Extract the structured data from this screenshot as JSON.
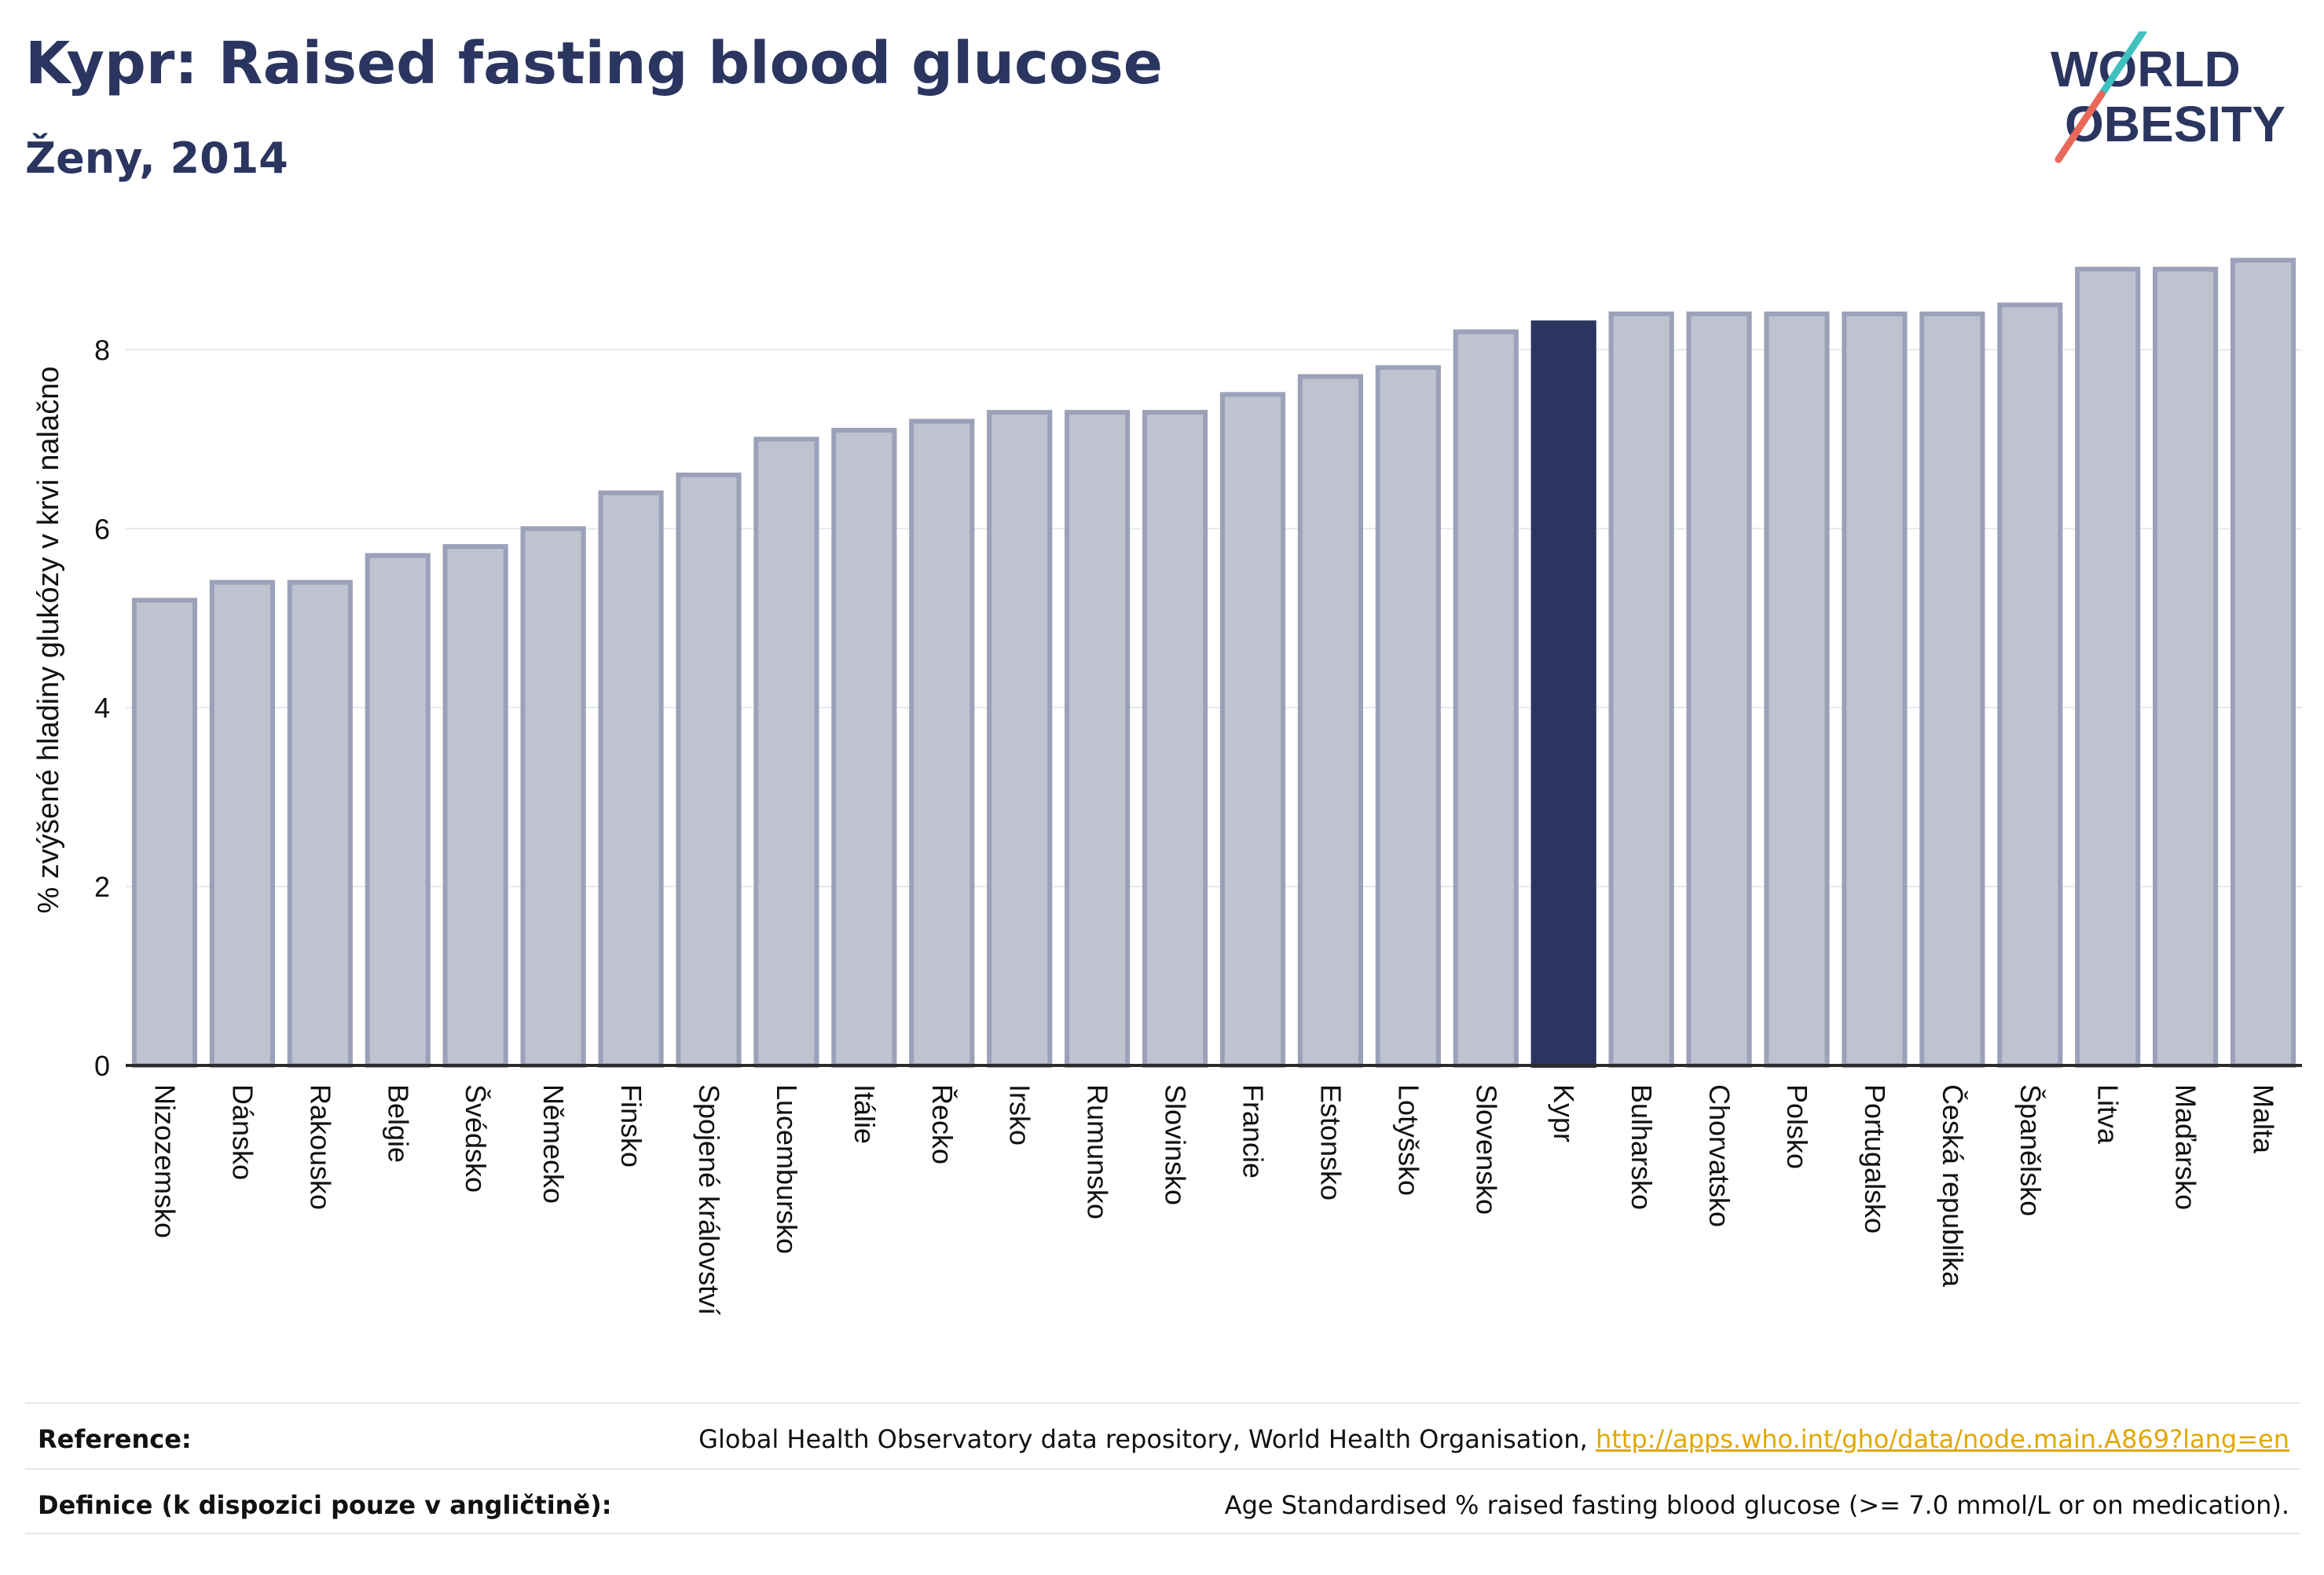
{
  "header": {
    "title": "Kypr: Raised fasting blood glucose",
    "subtitle": "Ženy, 2014"
  },
  "logo": {
    "line1": "WORLD",
    "line2": "OBESITY"
  },
  "colors": {
    "bar": "#bfc2cf",
    "bar_border": "#9ba1b8",
    "highlight": "#2a3560",
    "text": "#2a3560"
  },
  "chart_data": {
    "type": "bar",
    "ylabel": "% zvýšené hladiny glukózy v krvi nalačno",
    "ylim": [
      0,
      9.1
    ],
    "yticks": [
      0,
      2,
      4,
      6,
      8
    ],
    "grid": true,
    "highlight": "Kypr",
    "categories": [
      "Nizozemsko",
      "Dánsko",
      "Rakousko",
      "Belgie",
      "Švédsko",
      "Německo",
      "Finsko",
      "Spojené království",
      "Lucembursko",
      "Itálie",
      "Řecko",
      "Irsko",
      "Rumunsko",
      "Slovinsko",
      "Francie",
      "Estonsko",
      "Lotyšsko",
      "Slovensko",
      "Kypr",
      "Bulharsko",
      "Chorvatsko",
      "Polsko",
      "Portugalsko",
      "Česká republika",
      "Španělsko",
      "Litva",
      "Maďarsko",
      "Malta"
    ],
    "values": [
      5.2,
      5.4,
      5.4,
      5.7,
      5.8,
      6.0,
      6.4,
      6.6,
      7.0,
      7.1,
      7.2,
      7.3,
      7.3,
      7.3,
      7.5,
      7.7,
      7.8,
      8.2,
      8.3,
      8.4,
      8.4,
      8.4,
      8.4,
      8.4,
      8.5,
      8.9,
      8.9,
      9.0
    ]
  },
  "footer": {
    "reference_label": "Reference:",
    "reference_text": "Global Health Observatory data repository, World Health Organisation,",
    "reference_link": "http://apps.who.int/gho/data/node.main.A869?lang=en",
    "definition_label": "Definice (k dispozici pouze v angličtině):",
    "definition_text": "Age Standardised % raised fasting blood glucose (>= 7.0 mmol/L or on medication)."
  }
}
